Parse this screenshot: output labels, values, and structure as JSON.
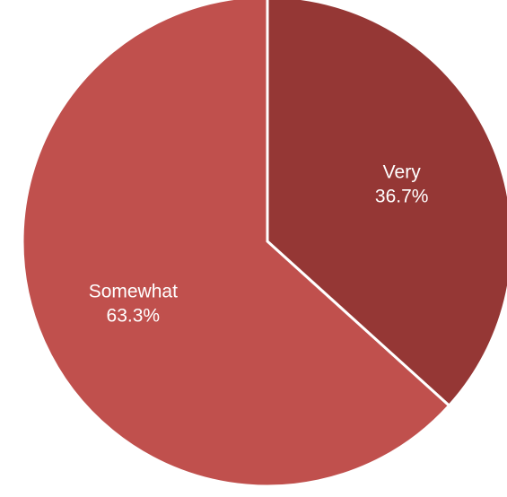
{
  "chart_data": {
    "type": "pie",
    "title": "",
    "start_angle_deg": 0,
    "direction": "clockwise",
    "slices": [
      {
        "name": "Very",
        "value": 36.7,
        "label": "Very",
        "value_label": "36.7%",
        "color": "#953735"
      },
      {
        "name": "Somewhat",
        "value": 63.3,
        "label": "Somewhat",
        "value_label": "63.3%",
        "color": "#c0504d"
      }
    ],
    "slice_border_color": "#ffffff",
    "legend": "none"
  }
}
